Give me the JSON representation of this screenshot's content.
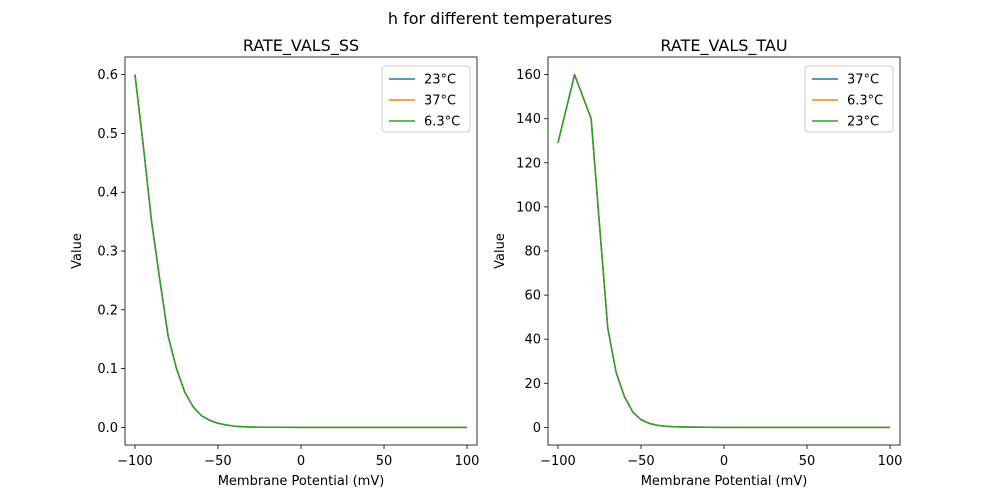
{
  "figure": {
    "suptitle": "h for different temperatures"
  },
  "chart_data": [
    {
      "type": "line",
      "title": "RATE_VALS_SS",
      "xlabel": "Membrane Potential (mV)",
      "ylabel": "Value",
      "xlim": [
        -106,
        106
      ],
      "ylim": [
        -0.03,
        0.63
      ],
      "xticks": [
        -100,
        -50,
        0,
        50,
        100
      ],
      "xtick_labels": [
        "−100",
        "−50",
        "0",
        "50",
        "100"
      ],
      "yticks": [
        0.0,
        0.1,
        0.2,
        0.3,
        0.4,
        0.5,
        0.6
      ],
      "ytick_labels": [
        "0.0",
        "0.1",
        "0.2",
        "0.3",
        "0.4",
        "0.5",
        "0.6"
      ],
      "grid": false,
      "legend_position": "top-right",
      "x": [
        -100,
        -95,
        -90,
        -85,
        -80,
        -75,
        -70,
        -65,
        -60,
        -55,
        -50,
        -45,
        -40,
        -35,
        -30,
        -25,
        -20,
        -10,
        0,
        25,
        50,
        75,
        100
      ],
      "series": [
        {
          "name": "23°C",
          "color": "#1f77b4",
          "values": [
            0.6,
            0.48,
            0.35,
            0.25,
            0.155,
            0.1,
            0.06,
            0.035,
            0.02,
            0.012,
            0.007,
            0.004,
            0.002,
            0.001,
            0.0006,
            0.0003,
            0.0002,
            0.0001,
            0.0,
            0.0,
            0.0,
            0.0,
            0.0
          ]
        },
        {
          "name": "37°C",
          "color": "#ff7f0e",
          "values": [
            0.6,
            0.48,
            0.35,
            0.25,
            0.155,
            0.1,
            0.06,
            0.035,
            0.02,
            0.012,
            0.007,
            0.004,
            0.002,
            0.001,
            0.0006,
            0.0003,
            0.0002,
            0.0001,
            0.0,
            0.0,
            0.0,
            0.0,
            0.0
          ]
        },
        {
          "name": "6.3°C",
          "color": "#2ca02c",
          "values": [
            0.6,
            0.48,
            0.35,
            0.25,
            0.155,
            0.1,
            0.06,
            0.035,
            0.02,
            0.012,
            0.007,
            0.004,
            0.002,
            0.001,
            0.0006,
            0.0003,
            0.0002,
            0.0001,
            0.0,
            0.0,
            0.0,
            0.0,
            0.0
          ]
        }
      ]
    },
    {
      "type": "line",
      "title": "RATE_VALS_TAU",
      "xlabel": "Membrane Potential (mV)",
      "ylabel": "Value",
      "xlim": [
        -106,
        106
      ],
      "ylim": [
        -8,
        168
      ],
      "xticks": [
        -100,
        -50,
        0,
        50,
        100
      ],
      "xtick_labels": [
        "−100",
        "−50",
        "0",
        "50",
        "100"
      ],
      "yticks": [
        0,
        20,
        40,
        60,
        80,
        100,
        120,
        140,
        160
      ],
      "ytick_labels": [
        "0",
        "20",
        "40",
        "60",
        "80",
        "100",
        "120",
        "140",
        "160"
      ],
      "grid": false,
      "legend_position": "top-right",
      "x": [
        -100,
        -90,
        -80,
        -75,
        -70,
        -65,
        -60,
        -55,
        -50,
        -45,
        -40,
        -35,
        -30,
        -20,
        -10,
        0,
        25,
        50,
        75,
        100
      ],
      "series": [
        {
          "name": "37°C",
          "color": "#1f77b4",
          "values": [
            129,
            160,
            140,
            92,
            45,
            25,
            14,
            7,
            3.5,
            1.8,
            0.9,
            0.5,
            0.3,
            0.1,
            0.05,
            0,
            0,
            0,
            0,
            0
          ]
        },
        {
          "name": "6.3°C",
          "color": "#ff7f0e",
          "values": [
            129,
            160,
            140,
            92,
            45,
            25,
            14,
            7,
            3.5,
            1.8,
            0.9,
            0.5,
            0.3,
            0.1,
            0.05,
            0,
            0,
            0,
            0,
            0
          ]
        },
        {
          "name": "23°C",
          "color": "#2ca02c",
          "values": [
            129,
            160,
            140,
            92,
            45,
            25,
            14,
            7,
            3.5,
            1.8,
            0.9,
            0.5,
            0.3,
            0.1,
            0.05,
            0,
            0,
            0,
            0,
            0
          ]
        }
      ]
    }
  ]
}
